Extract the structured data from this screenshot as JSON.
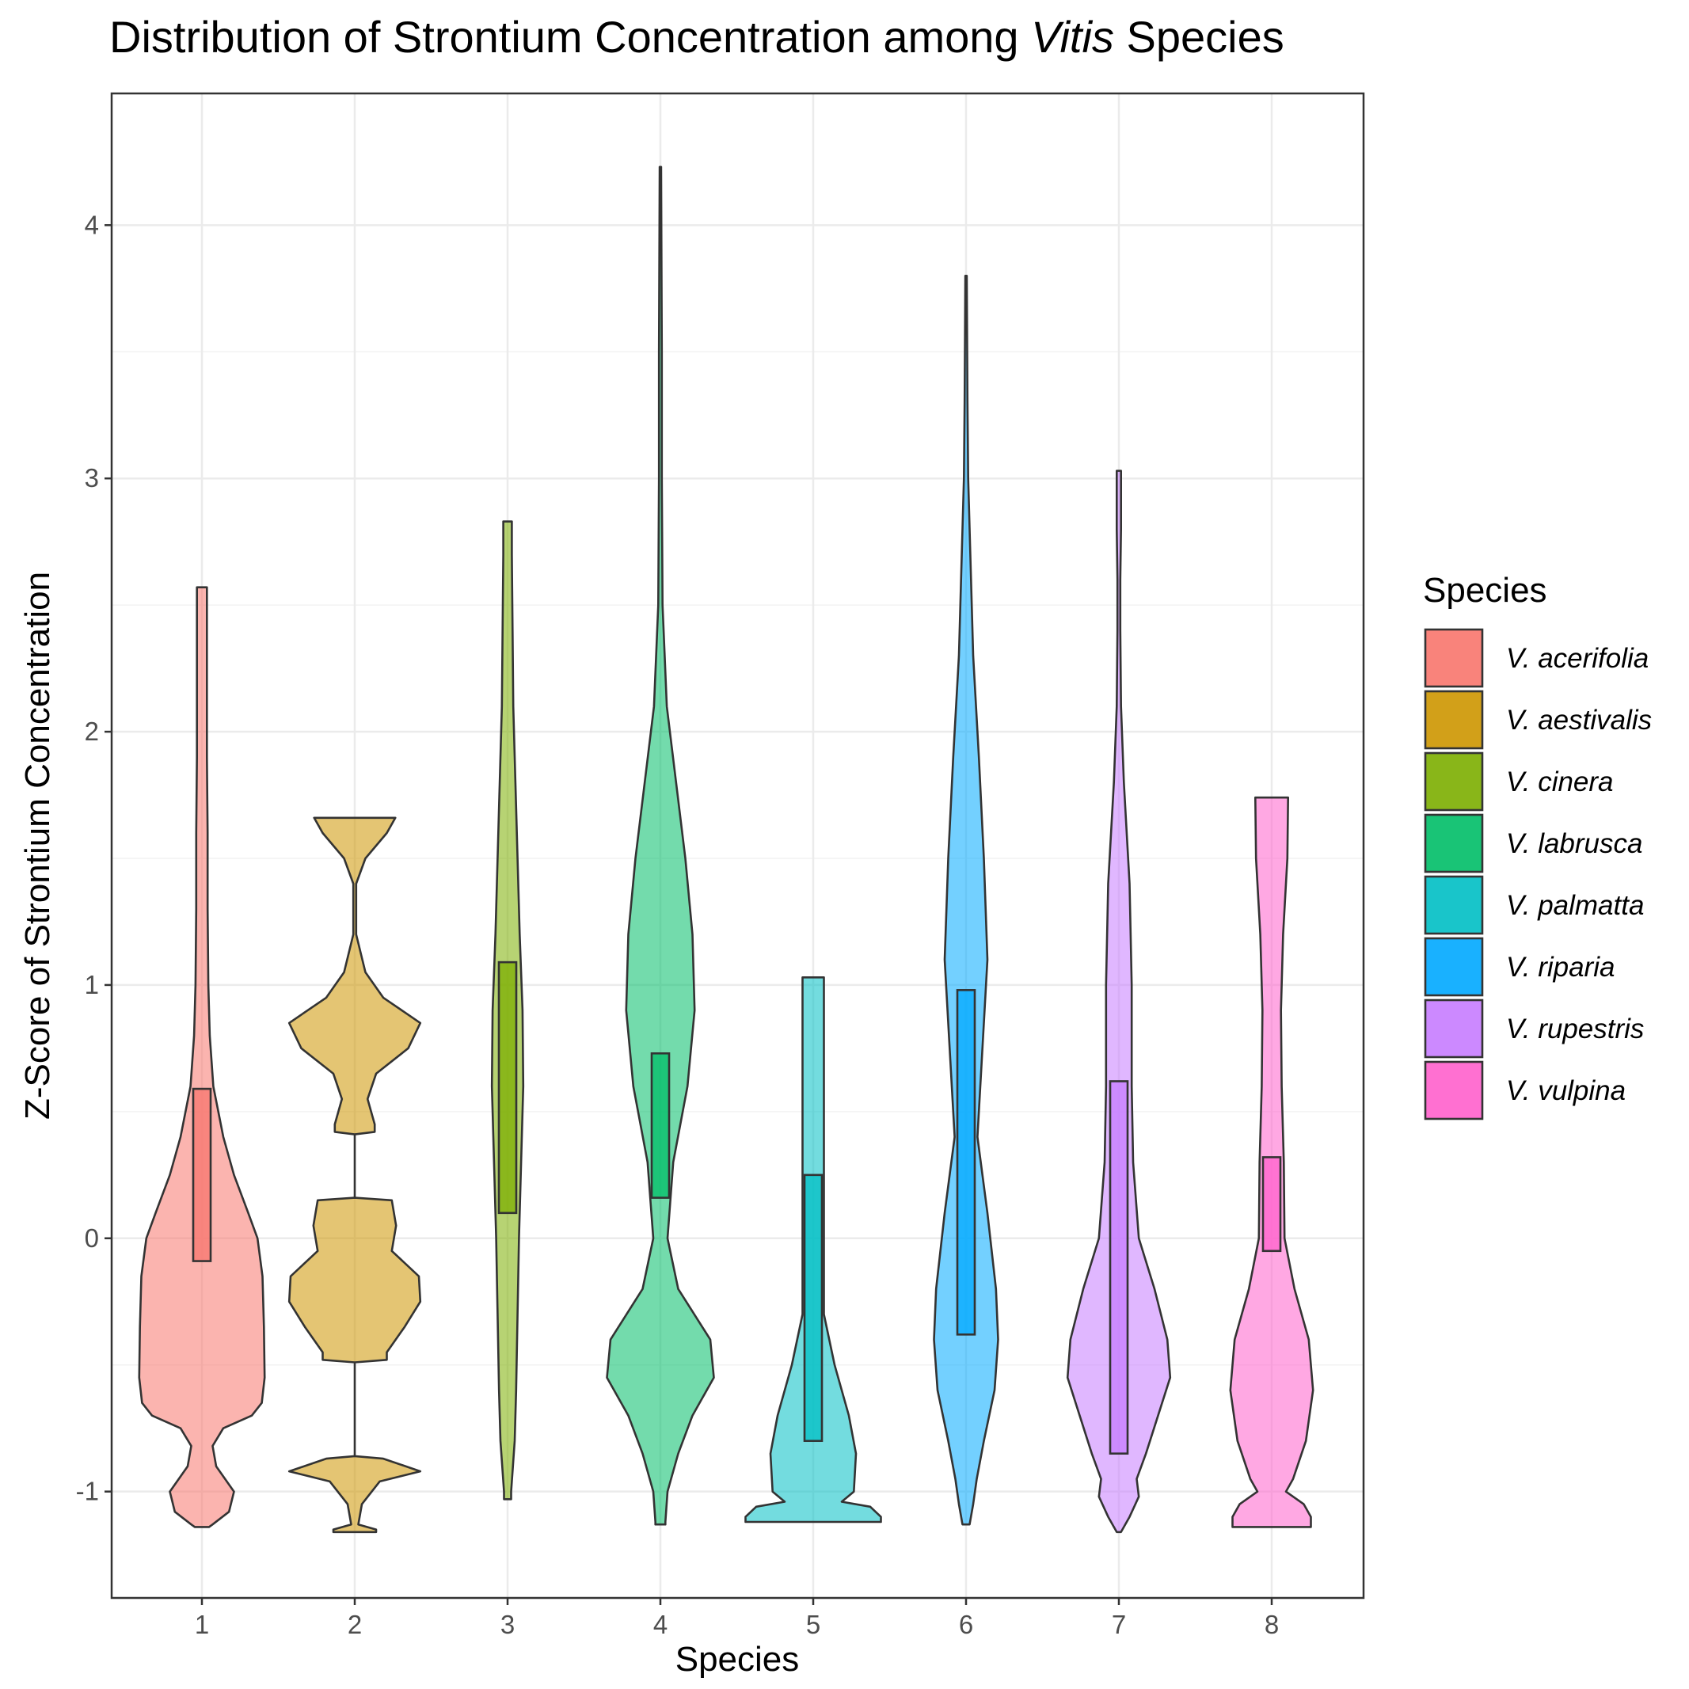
{
  "chart_data": {
    "type": "violin",
    "title_prefix": "Distribution of Strontium Concentration among ",
    "title_italic": "Vitis",
    "title_suffix": " Species",
    "xlabel": "Species",
    "ylabel": "Z-Score of Strontium Concentration",
    "categories": [
      "1",
      "2",
      "3",
      "4",
      "5",
      "6",
      "7",
      "8"
    ],
    "yticks": [
      "-1",
      "0",
      "1",
      "2",
      "3",
      "4"
    ],
    "ylim": [
      -1.42,
      4.52
    ],
    "grid": true,
    "legend": {
      "title": "Species",
      "position": "right",
      "entries": [
        {
          "label": "V. acerifolia",
          "color": "#F8766D"
        },
        {
          "label": "V. aestivalis",
          "color": "#CD9600"
        },
        {
          "label": "V. cinera",
          "color": "#7CAE00"
        },
        {
          "label": "V. labrusca",
          "color": "#00BE67"
        },
        {
          "label": "V. palmatta",
          "color": "#00BFC4"
        },
        {
          "label": "V. riparia",
          "color": "#00A9FF"
        },
        {
          "label": "V. rupestris",
          "color": "#C77CFF"
        },
        {
          "label": "V. vulpina",
          "color": "#FF61CC"
        }
      ]
    },
    "series": [
      {
        "x": "1",
        "color": "#F8766D",
        "box": [
          -0.09,
          0.59
        ],
        "profile": [
          [
            2.57,
            0.07
          ],
          [
            2.5,
            0.07
          ],
          [
            2.2,
            0.07
          ],
          [
            1.9,
            0.07
          ],
          [
            1.6,
            0.08
          ],
          [
            1.3,
            0.08
          ],
          [
            1.0,
            0.09
          ],
          [
            0.8,
            0.11
          ],
          [
            0.6,
            0.16
          ],
          [
            0.4,
            0.3
          ],
          [
            0.25,
            0.45
          ],
          [
            0.1,
            0.65
          ],
          [
            0.0,
            0.78
          ],
          [
            -0.15,
            0.85
          ],
          [
            -0.35,
            0.87
          ],
          [
            -0.55,
            0.88
          ],
          [
            -0.65,
            0.84
          ],
          [
            -0.7,
            0.7
          ],
          [
            -0.75,
            0.3
          ],
          [
            -0.82,
            0.15
          ],
          [
            -0.9,
            0.2
          ],
          [
            -1.0,
            0.45
          ],
          [
            -1.08,
            0.38
          ],
          [
            -1.13,
            0.15
          ],
          [
            -1.14,
            0.1
          ]
        ]
      },
      {
        "x": "2",
        "color": "#CD9600",
        "box": null,
        "profile": [
          [
            1.66,
            0.57
          ],
          [
            1.6,
            0.45
          ],
          [
            1.5,
            0.15
          ],
          [
            1.4,
            0.02
          ],
          [
            1.2,
            0.02
          ],
          [
            1.05,
            0.15
          ],
          [
            0.95,
            0.4
          ],
          [
            0.85,
            0.92
          ],
          [
            0.75,
            0.75
          ],
          [
            0.65,
            0.3
          ],
          [
            0.55,
            0.18
          ],
          [
            0.45,
            0.28
          ],
          [
            0.42,
            0.28
          ],
          [
            0.41,
            0
          ],
          [
            0.16,
            0
          ],
          [
            0.15,
            0.52
          ],
          [
            0.05,
            0.58
          ],
          [
            -0.05,
            0.52
          ],
          [
            -0.15,
            0.9
          ],
          [
            -0.25,
            0.92
          ],
          [
            -0.35,
            0.7
          ],
          [
            -0.45,
            0.45
          ],
          [
            -0.48,
            0.45
          ],
          [
            -0.49,
            0
          ],
          [
            -0.86,
            0
          ],
          [
            -0.87,
            0.4
          ],
          [
            -0.92,
            0.92
          ],
          [
            -0.96,
            0.35
          ],
          [
            -1.05,
            0.1
          ],
          [
            -1.13,
            0.05
          ],
          [
            -1.15,
            0.3
          ],
          [
            -1.16,
            0.3
          ]
        ]
      },
      {
        "x": "3",
        "color": "#7CAE00",
        "box": [
          0.1,
          1.09
        ],
        "profile": [
          [
            2.83,
            0.06
          ],
          [
            2.7,
            0.06
          ],
          [
            2.4,
            0.07
          ],
          [
            2.1,
            0.08
          ],
          [
            1.8,
            0.11
          ],
          [
            1.5,
            0.14
          ],
          [
            1.2,
            0.17
          ],
          [
            0.9,
            0.21
          ],
          [
            0.6,
            0.22
          ],
          [
            0.3,
            0.19
          ],
          [
            0.0,
            0.16
          ],
          [
            -0.3,
            0.14
          ],
          [
            -0.6,
            0.12
          ],
          [
            -0.8,
            0.1
          ],
          [
            -1.0,
            0.05
          ],
          [
            -1.03,
            0.05
          ]
        ]
      },
      {
        "x": "4",
        "color": "#00BE67",
        "box": [
          0.16,
          0.73
        ],
        "profile": [
          [
            4.23,
            0.01
          ],
          [
            3.5,
            0.02
          ],
          [
            3.0,
            0.02
          ],
          [
            2.5,
            0.03
          ],
          [
            2.1,
            0.09
          ],
          [
            1.8,
            0.22
          ],
          [
            1.5,
            0.35
          ],
          [
            1.2,
            0.45
          ],
          [
            0.9,
            0.48
          ],
          [
            0.6,
            0.38
          ],
          [
            0.3,
            0.18
          ],
          [
            0.0,
            0.1
          ],
          [
            -0.2,
            0.25
          ],
          [
            -0.4,
            0.7
          ],
          [
            -0.55,
            0.75
          ],
          [
            -0.7,
            0.45
          ],
          [
            -0.85,
            0.25
          ],
          [
            -1.0,
            0.1
          ],
          [
            -1.12,
            0.07
          ],
          [
            -1.13,
            0.07
          ]
        ]
      },
      {
        "x": "5",
        "color": "#00BFC4",
        "box": [
          -0.8,
          0.25
        ],
        "profile": [
          [
            1.03,
            0.15
          ],
          [
            0.8,
            0.15
          ],
          [
            0.5,
            0.15
          ],
          [
            0.25,
            0.15
          ],
          [
            0.0,
            0.15
          ],
          [
            -0.11,
            0.15
          ],
          [
            -0.3,
            0.15
          ],
          [
            -0.5,
            0.3
          ],
          [
            -0.7,
            0.5
          ],
          [
            -0.85,
            0.6
          ],
          [
            -1.0,
            0.57
          ],
          [
            -1.04,
            0.4
          ],
          [
            -1.06,
            0.8
          ],
          [
            -1.1,
            0.95
          ],
          [
            -1.12,
            0.95
          ]
        ]
      },
      {
        "x": "6",
        "color": "#00A9FF",
        "box": [
          -0.38,
          0.98
        ],
        "profile": [
          [
            3.8,
            0.01
          ],
          [
            3.3,
            0.02
          ],
          [
            3.0,
            0.03
          ],
          [
            2.7,
            0.06
          ],
          [
            2.3,
            0.1
          ],
          [
            1.9,
            0.18
          ],
          [
            1.5,
            0.25
          ],
          [
            1.1,
            0.3
          ],
          [
            0.7,
            0.22
          ],
          [
            0.4,
            0.16
          ],
          [
            0.1,
            0.3
          ],
          [
            -0.2,
            0.42
          ],
          [
            -0.4,
            0.45
          ],
          [
            -0.6,
            0.4
          ],
          [
            -0.8,
            0.25
          ],
          [
            -0.95,
            0.15
          ],
          [
            -1.05,
            0.1
          ],
          [
            -1.13,
            0.05
          ]
        ]
      },
      {
        "x": "7",
        "color": "#C77CFF",
        "box": [
          -0.85,
          0.62
        ],
        "profile": [
          [
            3.03,
            0.03
          ],
          [
            2.8,
            0.03
          ],
          [
            2.6,
            0.02
          ],
          [
            2.4,
            0.02
          ],
          [
            2.1,
            0.03
          ],
          [
            1.8,
            0.07
          ],
          [
            1.4,
            0.15
          ],
          [
            1.0,
            0.18
          ],
          [
            0.6,
            0.18
          ],
          [
            0.3,
            0.2
          ],
          [
            0.0,
            0.28
          ],
          [
            -0.2,
            0.5
          ],
          [
            -0.4,
            0.68
          ],
          [
            -0.55,
            0.72
          ],
          [
            -0.7,
            0.55
          ],
          [
            -0.85,
            0.38
          ],
          [
            -0.95,
            0.25
          ],
          [
            -1.02,
            0.28
          ],
          [
            -1.1,
            0.15
          ],
          [
            -1.16,
            0.03
          ]
        ]
      },
      {
        "x": "8",
        "color": "#FF61CC",
        "box": [
          -0.05,
          0.32
        ],
        "profile": [
          [
            1.74,
            0.23
          ],
          [
            1.5,
            0.22
          ],
          [
            1.2,
            0.16
          ],
          [
            0.9,
            0.13
          ],
          [
            0.6,
            0.14
          ],
          [
            0.3,
            0.17
          ],
          [
            0.0,
            0.18
          ],
          [
            -0.2,
            0.32
          ],
          [
            -0.4,
            0.52
          ],
          [
            -0.6,
            0.58
          ],
          [
            -0.8,
            0.48
          ],
          [
            -0.95,
            0.3
          ],
          [
            -1.0,
            0.2
          ],
          [
            -1.05,
            0.45
          ],
          [
            -1.1,
            0.55
          ],
          [
            -1.14,
            0.55
          ]
        ]
      }
    ]
  }
}
